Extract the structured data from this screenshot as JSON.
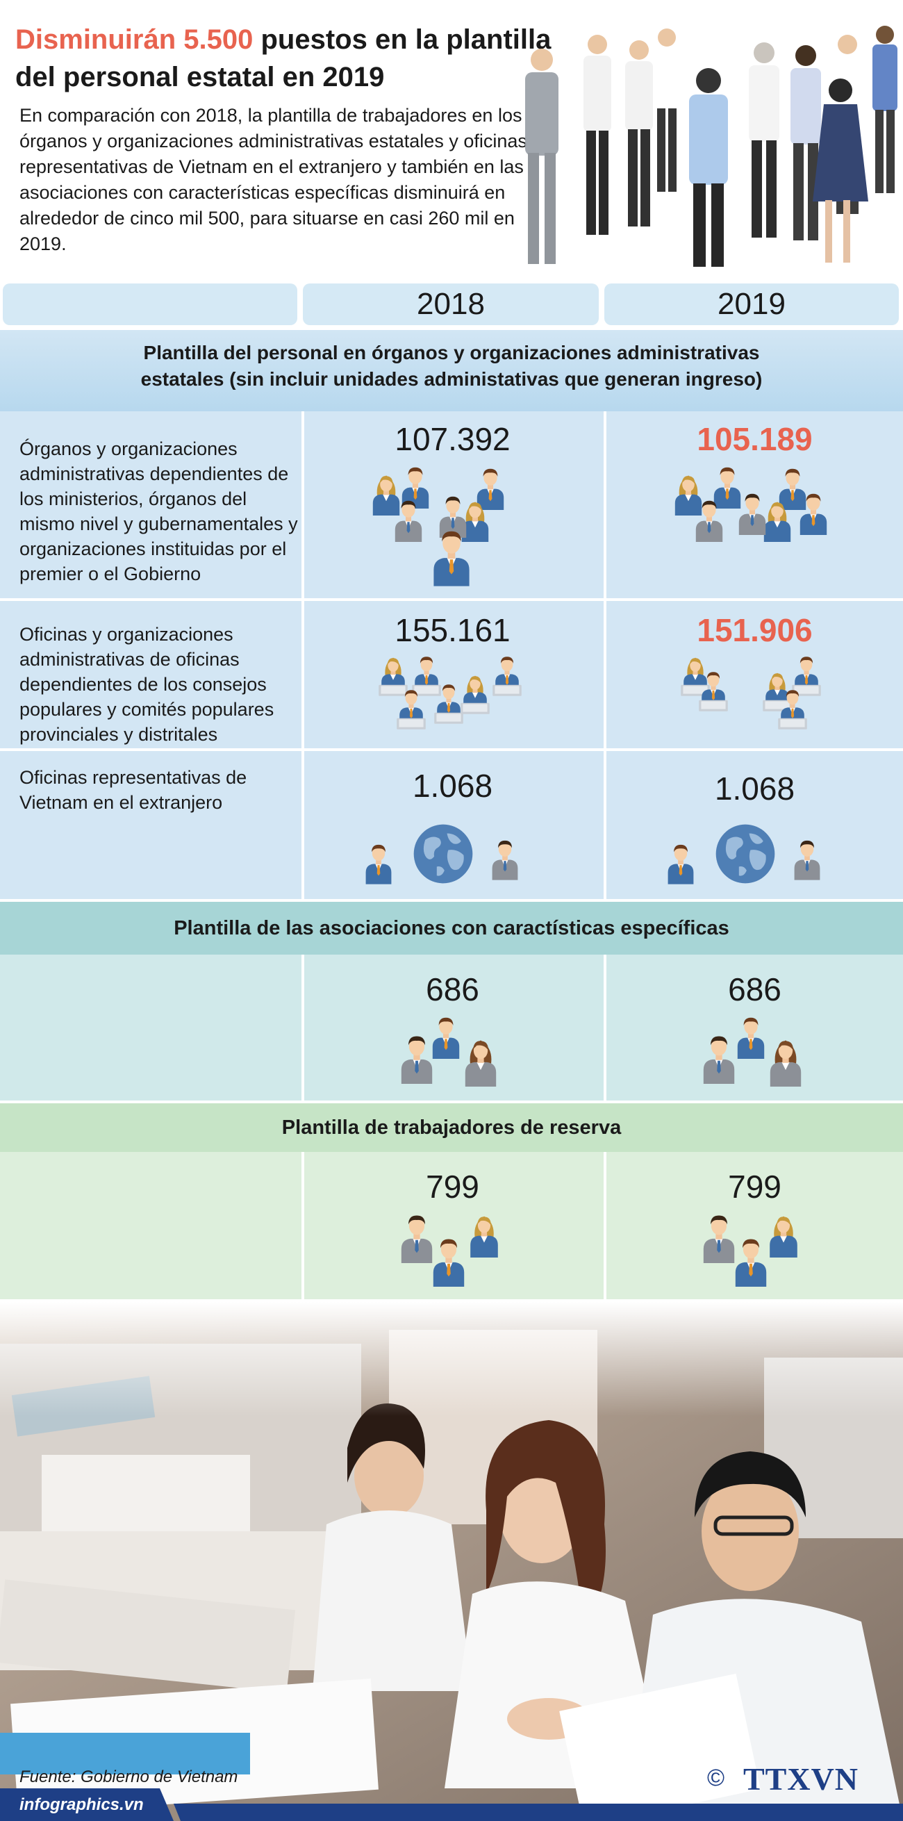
{
  "header": {
    "title_highlight": "Disminuirán 5.500",
    "title_rest": " puestos en la plantilla",
    "title_line2": "del personal estatal en 2019",
    "intro": "En comparación con 2018, la plantilla de trabajadores en los órganos y organizaciones administrativas estatales y oficinas representativas de Vietnam en el extranjero y también en las asociaciones con características específicas disminuirá en alrededor de cinco mil 500, para situarse en casi 260 mil en 2019."
  },
  "table": {
    "year_2018": "2018",
    "year_2019": "2019",
    "section1": {
      "heading_line1": "Plantilla del personal en  órganos y organizaciones administrativas",
      "heading_line2": "estatales (sin incluir unidades administativas que generan ingreso)",
      "rows": [
        {
          "label": "Órganos y organizaciones administrativas dependientes de los ministerios, órganos del mismo nivel y gubernamentales y organizaciones instituidas por el premier o el Gobierno",
          "v2018": "107.392",
          "v2019": "105.189"
        },
        {
          "label": "Oficinas y organizaciones administrativas de oficinas dependientes de los consejos populares y comités populares provinciales y distritales",
          "v2018": "155.161",
          "v2019": "151.906"
        },
        {
          "label": "Oficinas representativas de Vietnam en el extranjero",
          "v2018": "1.068",
          "v2019": "1.068"
        }
      ]
    },
    "section2": {
      "heading": "Plantilla de las asociaciones con caractísticas específicas",
      "v2018": "686",
      "v2019": "686"
    },
    "section3": {
      "heading": "Plantilla de trabajadores de reserva",
      "v2018": "799",
      "v2019": "799"
    }
  },
  "footer": {
    "source": "Fuente: Gobierno de Vietnam",
    "site": "infographics.vn",
    "copyright": "©",
    "logo_text": "TTXVN"
  },
  "colors": {
    "accent_red": "#e8634f",
    "blue_band": "#d3e6f4",
    "teal_band": "#d0e9ea",
    "green_band": "#ddefdc",
    "logo_blue": "#1e3f86"
  },
  "icons": [
    "people-group-icon",
    "office-workers-icon",
    "globe-icon",
    "person-icon"
  ]
}
